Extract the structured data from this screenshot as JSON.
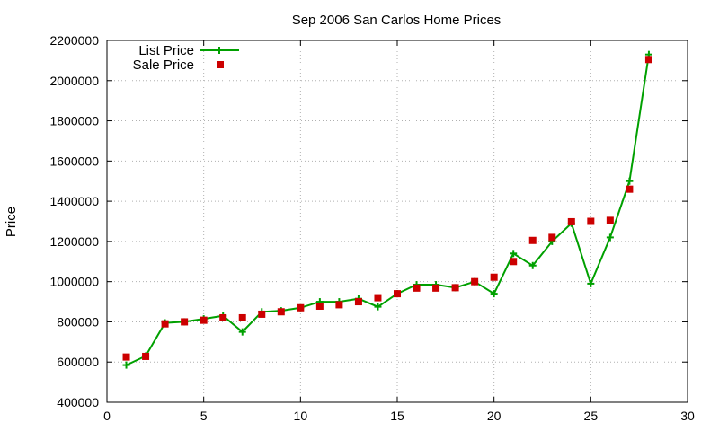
{
  "chart_data": {
    "type": "line",
    "title": "Sep 2006 San Carlos Home Prices",
    "xlabel": "",
    "ylabel": "Price",
    "xlim": [
      0,
      30
    ],
    "ylim": [
      400000,
      2200000
    ],
    "xticks": [
      0,
      5,
      10,
      15,
      20,
      25,
      30
    ],
    "yticks": [
      400000,
      600000,
      800000,
      1000000,
      1200000,
      1400000,
      1600000,
      1800000,
      2000000,
      2200000
    ],
    "grid": true,
    "legend_position": "top-left",
    "x": [
      1,
      2,
      3,
      4,
      5,
      6,
      7,
      8,
      9,
      10,
      11,
      12,
      13,
      14,
      15,
      16,
      17,
      18,
      19,
      20,
      21,
      22,
      23,
      24,
      25,
      26,
      27,
      28
    ],
    "series": [
      {
        "name": "List Price",
        "style": "line-with-plus-markers",
        "color": "#00a000",
        "values": [
          585000,
          630000,
          795000,
          800000,
          815000,
          830000,
          750000,
          850000,
          855000,
          870000,
          900000,
          900000,
          915000,
          875000,
          940000,
          985000,
          985000,
          970000,
          1000000,
          940000,
          1140000,
          1080000,
          1200000,
          1290000,
          990000,
          1220000,
          1500000,
          2130000
        ]
      },
      {
        "name": "Sale Price",
        "style": "square-markers",
        "color": "#cc0000",
        "values": [
          625000,
          628000,
          790000,
          800000,
          808000,
          820000,
          820000,
          838000,
          850000,
          870000,
          878000,
          885000,
          900000,
          920000,
          940000,
          968000,
          968000,
          970000,
          1000000,
          1022000,
          1100000,
          1205000,
          1220000,
          1298000,
          1300000,
          1305000,
          1460000,
          2105000
        ]
      }
    ]
  }
}
